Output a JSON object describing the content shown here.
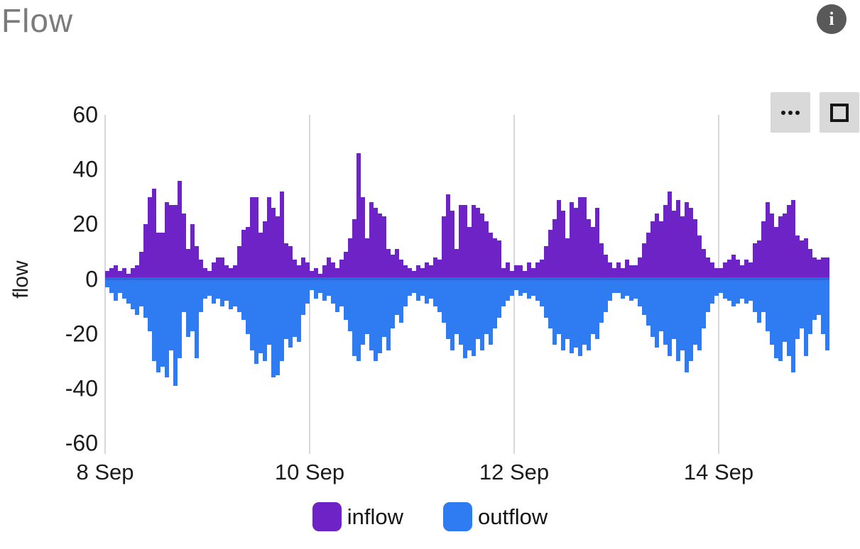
{
  "page": {
    "title": "Flow"
  },
  "icons": {
    "info": "i",
    "more_options": "ellipsis-3-dots",
    "fullscreen": "corner-brackets"
  },
  "ui_colors": {
    "title_gray": "#7b7b7b",
    "button_background": "#d9d9d9",
    "button_icon": "#171717",
    "info_circle": "#595959",
    "gridline": "#d8d8d8",
    "tick_text": "#1b1b1d"
  },
  "chart_data": {
    "type": "bar",
    "title": "Flow",
    "xlabel": "",
    "ylabel": "flow",
    "ylim": [
      -60,
      60
    ],
    "y_ticks": [
      60,
      40,
      20,
      0,
      -20,
      -40,
      -60
    ],
    "x_ticks": [
      {
        "label": "8 Sep",
        "hour": 0
      },
      {
        "label": "10 Sep",
        "hour": 48
      },
      {
        "label": "12 Sep",
        "hour": 96
      },
      {
        "label": "14 Sep",
        "hour": 144
      }
    ],
    "x_resolution": "hourly",
    "x_span_hours": 170,
    "grid": "vertical-only",
    "legend_position": "bottom",
    "zero_line_color": "#2b66dd",
    "series": [
      {
        "name": "inflow",
        "color": "#6e23c6",
        "values": [
          3,
          4,
          5,
          3,
          4,
          2,
          4,
          5,
          10,
          20,
          30,
          33,
          17,
          17,
          28,
          27,
          27,
          36,
          24,
          11,
          20,
          12,
          7,
          4,
          3,
          6,
          8,
          8,
          5,
          4,
          5,
          12,
          18,
          19,
          30,
          30,
          17,
          21,
          30,
          26,
          23,
          32,
          13,
          12,
          7,
          5,
          8,
          6,
          3,
          4,
          2,
          5,
          8,
          6,
          4,
          7,
          10,
          15,
          22,
          46,
          30,
          15,
          28,
          26,
          24,
          23,
          11,
          9,
          11,
          7,
          5,
          4,
          3,
          5,
          4,
          6,
          5,
          8,
          7,
          23,
          31,
          25,
          11,
          27,
          27,
          19,
          27,
          26,
          24,
          21,
          17,
          15,
          14,
          4,
          6,
          3,
          5,
          5,
          3,
          6,
          4,
          6,
          7,
          12,
          18,
          22,
          29,
          25,
          15,
          28,
          26,
          30,
          30,
          22,
          19,
          26,
          13,
          9,
          6,
          4,
          6,
          4,
          7,
          5,
          5,
          8,
          13,
          17,
          21,
          24,
          21,
          27,
          32,
          25,
          29,
          23,
          28,
          26,
          22,
          16,
          11,
          8,
          6,
          4,
          4,
          6,
          7,
          9,
          7,
          5,
          7,
          6,
          13,
          14,
          21,
          28,
          24,
          19,
          23,
          24,
          27,
          29,
          16,
          14,
          15,
          11,
          8,
          7,
          8,
          8
        ]
      },
      {
        "name": "outflow",
        "color": "#2f7bf2",
        "values": [
          -3,
          -5,
          -8,
          -5,
          -7,
          -9,
          -11,
          -13,
          -10,
          -14,
          -19,
          -30,
          -34,
          -32,
          -36,
          -26,
          -39,
          -29,
          -12,
          -21,
          -19,
          -29,
          -12,
          -7,
          -6,
          -9,
          -7,
          -10,
          -8,
          -11,
          -10,
          -12,
          -15,
          -20,
          -26,
          -31,
          -27,
          -30,
          -24,
          -36,
          -35,
          -30,
          -22,
          -25,
          -21,
          -23,
          -13,
          -9,
          -4,
          -7,
          -5,
          -8,
          -6,
          -9,
          -12,
          -10,
          -15,
          -19,
          -28,
          -30,
          -24,
          -20,
          -26,
          -30,
          -27,
          -21,
          -26,
          -18,
          -13,
          -16,
          -10,
          -6,
          -5,
          -8,
          -6,
          -9,
          -7,
          -10,
          -12,
          -16,
          -22,
          -26,
          -20,
          -24,
          -29,
          -26,
          -28,
          -22,
          -26,
          -20,
          -24,
          -18,
          -14,
          -10,
          -8,
          -6,
          -4,
          -6,
          -5,
          -7,
          -6,
          -8,
          -10,
          -14,
          -18,
          -24,
          -20,
          -26,
          -22,
          -27,
          -25,
          -28,
          -24,
          -26,
          -20,
          -22,
          -16,
          -12,
          -8,
          -5,
          -5,
          -7,
          -6,
          -8,
          -7,
          -10,
          -13,
          -17,
          -21,
          -25,
          -19,
          -24,
          -28,
          -22,
          -30,
          -26,
          -34,
          -30,
          -24,
          -26,
          -18,
          -12,
          -9,
          -6,
          -5,
          -7,
          -8,
          -10,
          -9,
          -7,
          -9,
          -8,
          -12,
          -16,
          -12,
          -19,
          -24,
          -29,
          -30,
          -23,
          -28,
          -34,
          -22,
          -18,
          -28,
          -20,
          -15,
          -13,
          -20,
          -26
        ]
      }
    ]
  }
}
